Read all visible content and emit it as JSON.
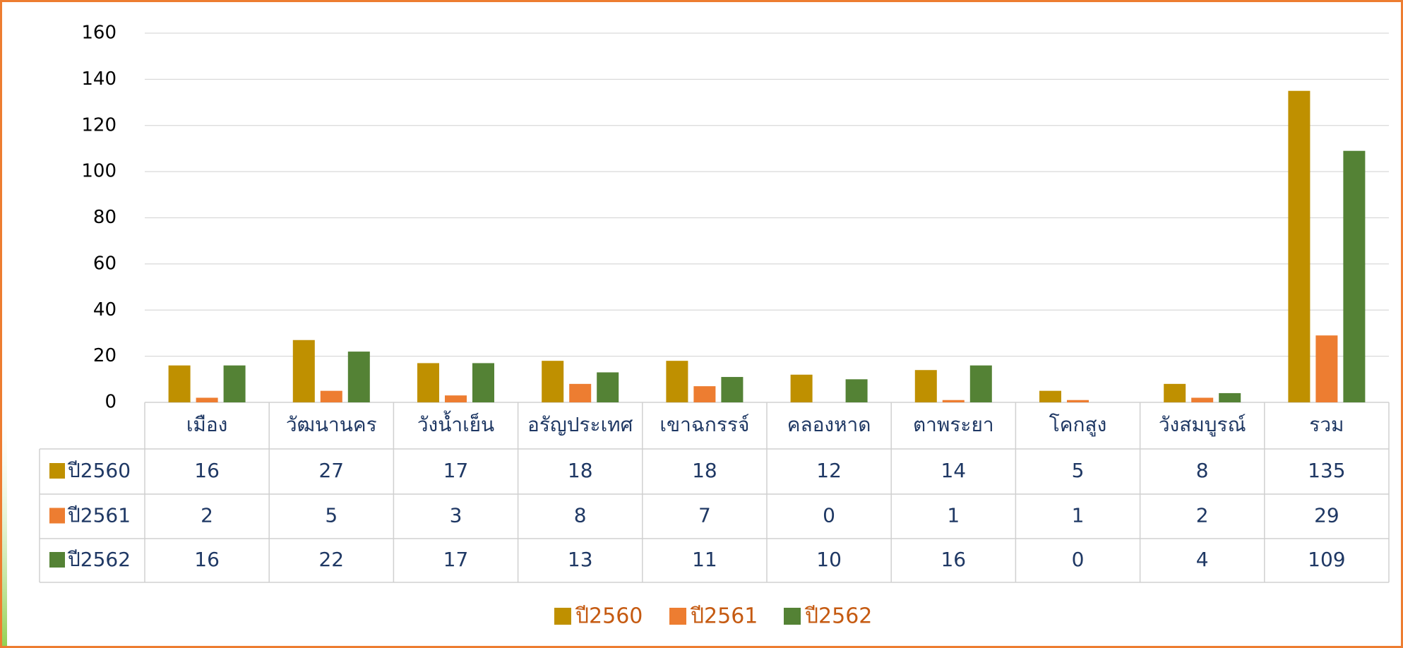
{
  "chart_data": {
    "type": "bar",
    "categories": [
      "เมือง",
      "วัฒนานคร",
      "วังน้ำเย็น",
      "อรัญประเทศ",
      "เขาฉกรรจ์",
      "คลองหาด",
      "ตาพระยา",
      "โคกสูง",
      "วังสมบูรณ์",
      "รวม"
    ],
    "series": [
      {
        "name": "ปี2560",
        "color": "#bf9000",
        "values": [
          16,
          27,
          17,
          18,
          18,
          12,
          14,
          5,
          8,
          135
        ]
      },
      {
        "name": "ปี2561",
        "color": "#ed7d31",
        "values": [
          2,
          5,
          3,
          8,
          7,
          0,
          1,
          1,
          2,
          29
        ]
      },
      {
        "name": "ปี2562",
        "color": "#548235",
        "values": [
          16,
          22,
          17,
          13,
          11,
          10,
          16,
          0,
          4,
          109
        ]
      }
    ],
    "ylim": [
      0,
      160
    ],
    "yticks": [
      0,
      20,
      40,
      60,
      80,
      100,
      120,
      140,
      160
    ],
    "grid": true,
    "legend": "bottom"
  }
}
